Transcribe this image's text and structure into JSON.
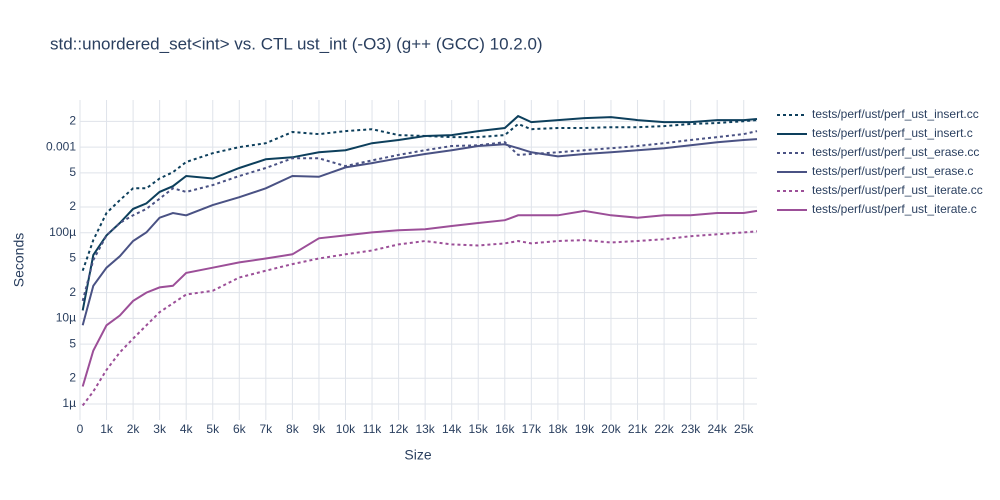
{
  "chart_data": {
    "type": "line",
    "title": "std::unordered_set<int> vs. CTL ust_int (-O3) (g++ (GCC) 10.2.0)",
    "x_label": "Size",
    "y_label": "Seconds",
    "y_scale": "log",
    "grid": true,
    "legend_position": "right",
    "xlim": [
      0,
      25500
    ],
    "ylim": [
      6.5e-07,
      0.00355
    ],
    "xticks": [
      0,
      {
        "value": 1000,
        "label": "1k"
      },
      {
        "value": 2000,
        "label": "2k"
      },
      {
        "value": 3000,
        "label": "3k"
      },
      {
        "value": 4000,
        "label": "4k"
      },
      {
        "value": 5000,
        "label": "5k"
      },
      {
        "value": 6000,
        "label": "6k"
      },
      {
        "value": 7000,
        "label": "7k"
      },
      {
        "value": 8000,
        "label": "8k"
      },
      {
        "value": 9000,
        "label": "9k"
      },
      {
        "value": 10000,
        "label": "10k"
      },
      {
        "value": 11000,
        "label": "11k"
      },
      {
        "value": 12000,
        "label": "12k"
      },
      {
        "value": 13000,
        "label": "13k"
      },
      {
        "value": 14000,
        "label": "14k"
      },
      {
        "value": 15000,
        "label": "15k"
      },
      {
        "value": 16000,
        "label": "16k"
      },
      {
        "value": 17000,
        "label": "17k"
      },
      {
        "value": 18000,
        "label": "18k"
      },
      {
        "value": 19000,
        "label": "19k"
      },
      {
        "value": 20000,
        "label": "20k"
      },
      {
        "value": 21000,
        "label": "21k"
      },
      {
        "value": 22000,
        "label": "22k"
      },
      {
        "value": 23000,
        "label": "23k"
      },
      {
        "value": 24000,
        "label": "24k"
      },
      {
        "value": 25000,
        "label": "25k"
      }
    ],
    "yticks": [
      {
        "value": 1e-06,
        "label": "1µ"
      },
      {
        "value": 2e-06,
        "label": "2"
      },
      {
        "value": 5e-06,
        "label": "5"
      },
      {
        "value": 1e-05,
        "label": "10µ"
      },
      {
        "value": 2e-05,
        "label": "2"
      },
      {
        "value": 5e-05,
        "label": "5"
      },
      {
        "value": 0.0001,
        "label": "100µ"
      },
      {
        "value": 0.0002,
        "label": "2"
      },
      {
        "value": 0.0005,
        "label": "5"
      },
      0.001,
      {
        "value": 0.002,
        "label": "2"
      }
    ],
    "x": [
      100,
      500,
      1000,
      1500,
      2000,
      2500,
      3000,
      3500,
      4000,
      5000,
      6000,
      7000,
      8000,
      9000,
      10000,
      11000,
      12000,
      13000,
      14000,
      15000,
      16000,
      16500,
      17000,
      18000,
      19000,
      20000,
      21000,
      22000,
      23000,
      24000,
      25000,
      25500
    ],
    "series": [
      {
        "name": "tests/perf/ust/perf_ust_insert.cc",
        "color": "#0d3f5c",
        "dash": "dot",
        "values": [
          3.6e-05,
          8.2e-05,
          0.00017,
          0.00024,
          0.00033,
          0.00033,
          0.00043,
          0.00051,
          0.00067,
          0.00085,
          0.001,
          0.00111,
          0.0015,
          0.00142,
          0.00154,
          0.00162,
          0.00138,
          0.00135,
          0.00131,
          0.00131,
          0.00138,
          0.00186,
          0.00162,
          0.00167,
          0.00167,
          0.00171,
          0.00171,
          0.00176,
          0.00186,
          0.00191,
          0.00201,
          0.00207
        ]
      },
      {
        "name": "tests/perf/ust/perf_ust_insert.c",
        "color": "#0d3f5c",
        "dash": "solid",
        "values": [
          1.24e-05,
          5.5e-05,
          9.3e-05,
          0.00013,
          0.00019,
          0.00022,
          0.0003,
          0.00035,
          0.00046,
          0.00043,
          0.00057,
          0.00072,
          0.00076,
          0.00087,
          0.00092,
          0.00111,
          0.00121,
          0.00135,
          0.00138,
          0.00154,
          0.00167,
          0.0023,
          0.00196,
          0.00207,
          0.00218,
          0.00224,
          0.00207,
          0.00196,
          0.00196,
          0.00207,
          0.00207,
          0.00213
        ]
      },
      {
        "name": "tests/perf/ust/perf_ust_erase.cc",
        "color": "#4a5284",
        "dash": "dot",
        "values": [
          1.6e-05,
          4.8e-05,
          9.3e-05,
          0.00013,
          0.00016,
          0.00019,
          0.00025,
          0.00033,
          0.0003,
          0.00036,
          0.00046,
          0.00057,
          0.00074,
          0.00074,
          0.0006,
          0.0007,
          0.00081,
          0.00092,
          0.00103,
          0.00105,
          0.00114,
          0.00081,
          0.00083,
          0.00087,
          0.00092,
          0.00097,
          0.00103,
          0.00111,
          0.00121,
          0.00131,
          0.00142,
          0.00154
        ]
      },
      {
        "name": "tests/perf/ust/perf_ust_erase.c",
        "color": "#4a5284",
        "dash": "solid",
        "values": [
          8.3e-06,
          2.4e-05,
          3.9e-05,
          5.3e-05,
          8e-05,
          0.000101,
          0.00015,
          0.00017,
          0.00016,
          0.00021,
          0.00026,
          0.00033,
          0.00046,
          0.00045,
          0.00058,
          0.00065,
          0.00074,
          0.00083,
          0.00092,
          0.00103,
          0.00108,
          0.00097,
          0.00087,
          0.00078,
          0.00083,
          0.00087,
          0.00092,
          0.00097,
          0.00105,
          0.00114,
          0.00121,
          0.00124
        ]
      },
      {
        "name": "tests/perf/ust/perf_ust_iterate.cc",
        "color": "#9c4f98",
        "dash": "dot",
        "values": [
          9.6e-07,
          1.4e-06,
          2.5e-06,
          4e-06,
          5.8e-06,
          8.3e-06,
          1.18e-05,
          1.5e-05,
          1.9e-05,
          2.1e-05,
          3e-05,
          3.6e-05,
          4.3e-05,
          5e-05,
          5.6e-05,
          6.2e-05,
          7.3e-05,
          8e-05,
          7.3e-05,
          7.1e-05,
          7.5e-05,
          8e-05,
          7.5e-05,
          8e-05,
          8.2e-05,
          7.7e-05,
          8e-05,
          8.4e-05,
          9.1e-05,
          9.6e-05,
          0.000101,
          0.000104
        ]
      },
      {
        "name": "tests/perf/ust/perf_ust_iterate.c",
        "color": "#9c4f98",
        "dash": "solid",
        "values": [
          1.6e-06,
          4.2e-06,
          8.3e-06,
          1.08e-05,
          1.6e-05,
          2e-05,
          2.3e-05,
          2.4e-05,
          3.4e-05,
          3.9e-05,
          4.5e-05,
          5e-05,
          5.6e-05,
          8.6e-05,
          9.3e-05,
          0.000101,
          0.000107,
          0.00011,
          0.00012,
          0.00013,
          0.00014,
          0.00016,
          0.00016,
          0.00016,
          0.00018,
          0.00016,
          0.00015,
          0.00016,
          0.00016,
          0.00017,
          0.00017,
          0.00018
        ]
      }
    ]
  }
}
